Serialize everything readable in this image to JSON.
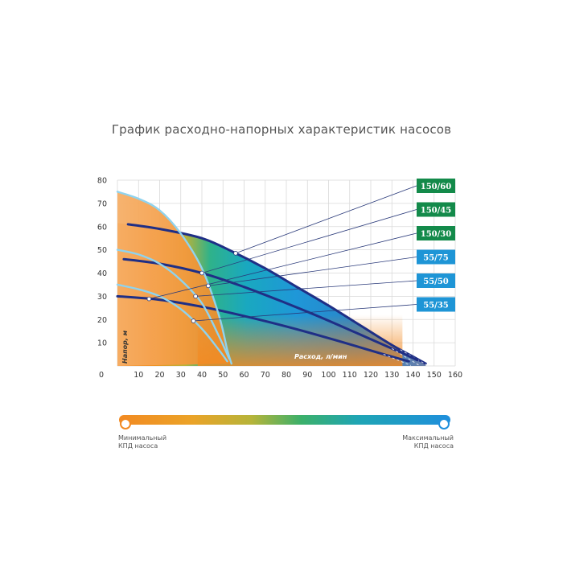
{
  "chart_data": {
    "type": "line",
    "title": "График расходно-напорных характеристик насосов",
    "xlabel": "Расход, л/мин",
    "ylabel": "Напор, м",
    "xlim": [
      0,
      160
    ],
    "ylim": [
      0,
      80
    ],
    "x_ticks": [
      0,
      10,
      20,
      30,
      40,
      50,
      60,
      70,
      80,
      90,
      100,
      110,
      120,
      130,
      140,
      150,
      160
    ],
    "y_ticks": [
      10,
      20,
      30,
      40,
      50,
      60,
      70,
      80
    ],
    "grid": true,
    "series": [
      {
        "name": "150/60",
        "points": [
          [
            5,
            61
          ],
          [
            20,
            59
          ],
          [
            40,
            55
          ],
          [
            55,
            49
          ],
          [
            70,
            42
          ],
          [
            85,
            34
          ],
          [
            100,
            26
          ],
          [
            115,
            17.5
          ],
          [
            130,
            9
          ],
          [
            140,
            4
          ],
          [
            146,
            1
          ]
        ]
      },
      {
        "name": "150/45",
        "points": [
          [
            3,
            46
          ],
          [
            20,
            44
          ],
          [
            40,
            40
          ],
          [
            60,
            34
          ],
          [
            80,
            27
          ],
          [
            100,
            19.5
          ],
          [
            120,
            11.5
          ],
          [
            135,
            5.5
          ],
          [
            142,
            2.5
          ]
        ]
      },
      {
        "name": "150/30",
        "points": [
          [
            0,
            30
          ],
          [
            20,
            28.5
          ],
          [
            40,
            25.5
          ],
          [
            60,
            21.5
          ],
          [
            80,
            17
          ],
          [
            100,
            12
          ],
          [
            115,
            8
          ],
          [
            130,
            4
          ],
          [
            138,
            2
          ]
        ]
      },
      {
        "name": "55/75",
        "points": [
          [
            0,
            75
          ],
          [
            10,
            72
          ],
          [
            20,
            67
          ],
          [
            30,
            57
          ],
          [
            40,
            42
          ],
          [
            48,
            22
          ],
          [
            52,
            7
          ],
          [
            54,
            1
          ]
        ]
      },
      {
        "name": "55/50",
        "points": [
          [
            0,
            50
          ],
          [
            10,
            48
          ],
          [
            20,
            44
          ],
          [
            30,
            37
          ],
          [
            40,
            27
          ],
          [
            48,
            13
          ],
          [
            53,
            3
          ]
        ]
      },
      {
        "name": "55/35",
        "points": [
          [
            0,
            35
          ],
          [
            10,
            33
          ],
          [
            20,
            30
          ],
          [
            30,
            24.5
          ],
          [
            40,
            16
          ],
          [
            48,
            7
          ],
          [
            52,
            2
          ]
        ]
      }
    ],
    "efficiency_scale": {
      "min_label": "Минимальный КПД насоса",
      "max_label": "Максимальный КПД насоса",
      "min_color": "#f28a22",
      "max_color": "#1f8fdc"
    },
    "label_colors": {
      "150": "#138a4a",
      "55": "#1e95d6"
    },
    "curve_colors": {
      "150": "#1f2f86",
      "55": "#8fd3ee"
    }
  }
}
